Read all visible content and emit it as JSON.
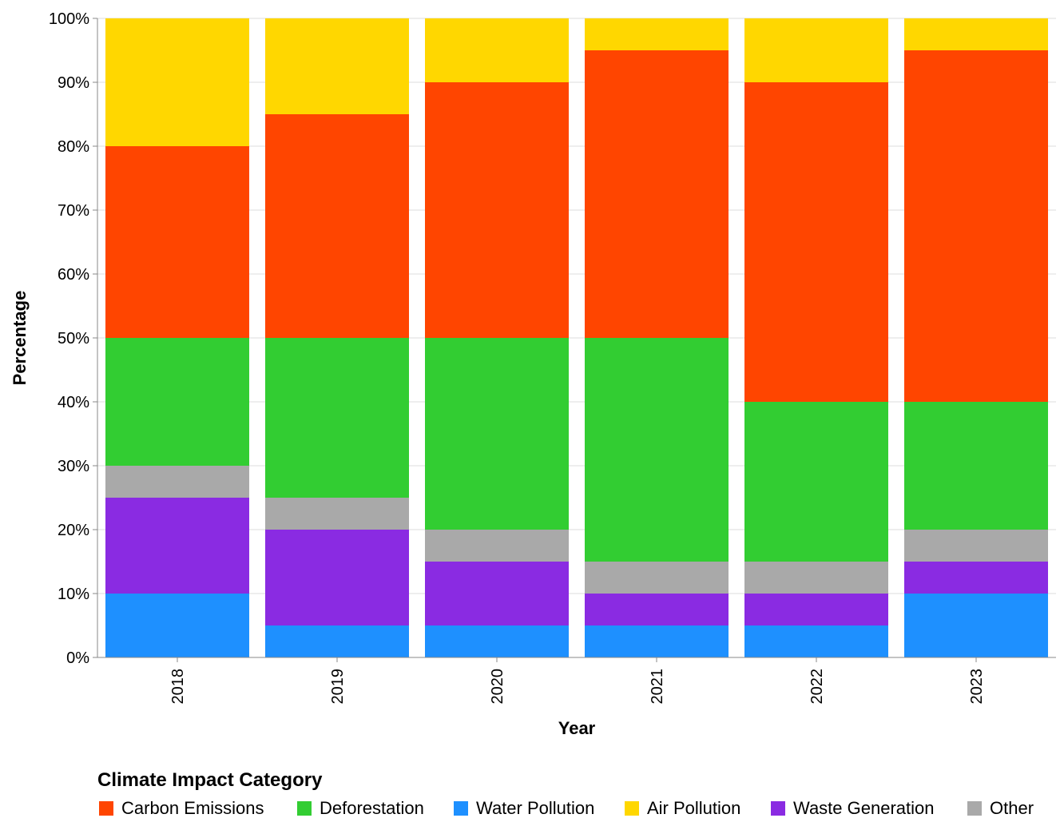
{
  "chart_data": {
    "type": "bar",
    "stacked": true,
    "normalized": true,
    "categories": [
      "2018",
      "2019",
      "2020",
      "2021",
      "2022",
      "2023"
    ],
    "stack_order_bottom_to_top": [
      "Water Pollution",
      "Waste Generation",
      "Other",
      "Deforestation",
      "Carbon Emissions",
      "Air Pollution"
    ],
    "series": [
      {
        "name": "Carbon Emissions",
        "color": "#ff4500",
        "values": [
          30,
          35,
          40,
          45,
          50,
          55
        ]
      },
      {
        "name": "Deforestation",
        "color": "#32cd32",
        "values": [
          20,
          25,
          30,
          35,
          25,
          20
        ]
      },
      {
        "name": "Water Pollution",
        "color": "#1e90ff",
        "values": [
          10,
          5,
          5,
          5,
          5,
          10
        ]
      },
      {
        "name": "Air Pollution",
        "color": "#ffd700",
        "values": [
          20,
          15,
          10,
          5,
          10,
          5
        ]
      },
      {
        "name": "Waste Generation",
        "color": "#8a2be2",
        "values": [
          15,
          15,
          10,
          5,
          5,
          5
        ]
      },
      {
        "name": "Other",
        "color": "#a9a9a9",
        "values": [
          5,
          5,
          5,
          5,
          5,
          5
        ]
      }
    ],
    "xlabel": "Year",
    "ylabel": "Percentage",
    "ylim": [
      0,
      100
    ],
    "yticks": [
      "0%",
      "10%",
      "20%",
      "30%",
      "40%",
      "50%",
      "60%",
      "70%",
      "80%",
      "90%",
      "100%"
    ],
    "grid": true,
    "legend": {
      "title": "Climate Impact Category",
      "placement": "bottom-left",
      "entries": [
        "Carbon Emissions",
        "Deforestation",
        "Water Pollution",
        "Air Pollution",
        "Waste Generation",
        "Other"
      ]
    }
  }
}
